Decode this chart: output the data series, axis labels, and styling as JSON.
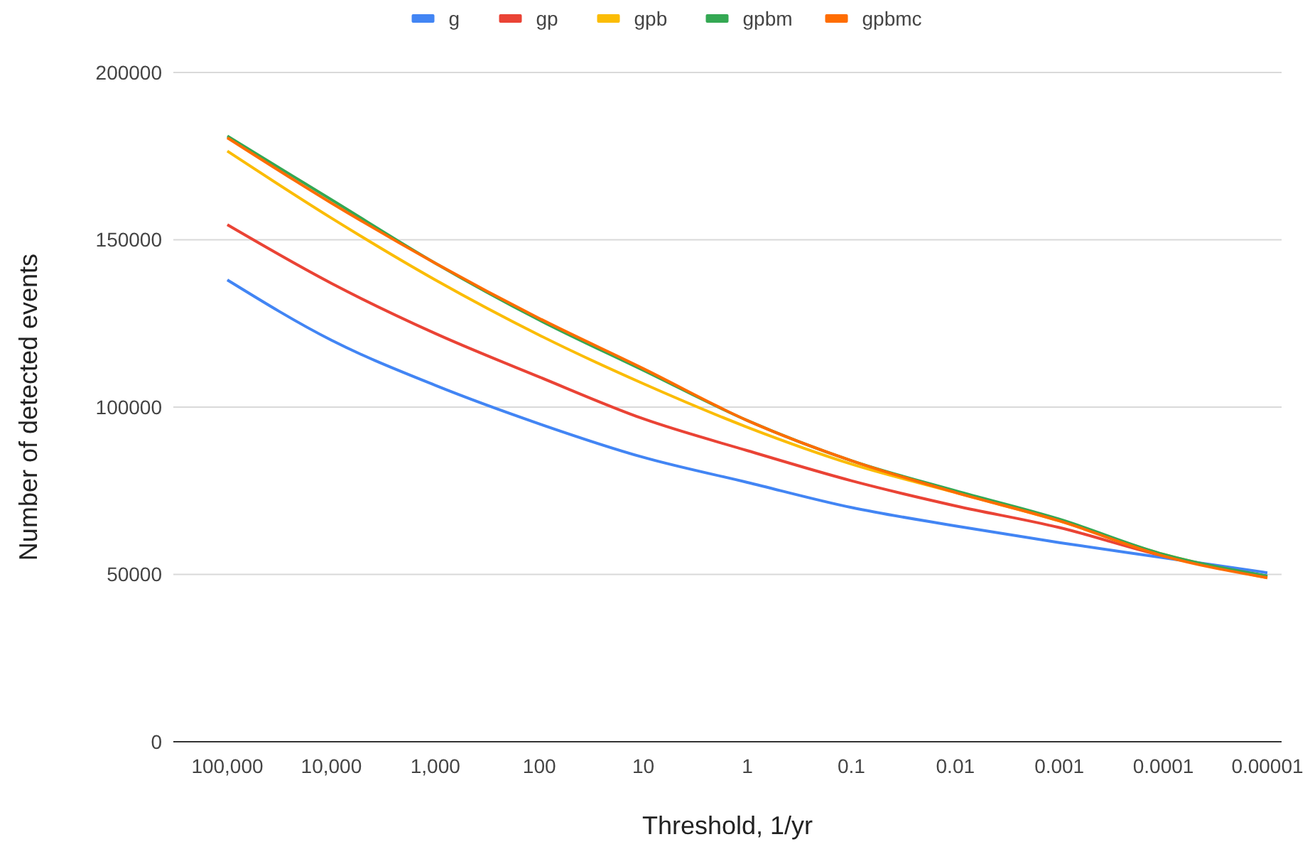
{
  "chart_data": {
    "type": "line",
    "xlabel": "Threshold, 1/yr",
    "ylabel": "Number of detected events",
    "categories": [
      "100,000",
      "10,000",
      "1,000",
      "100",
      "10",
      "1",
      "0.1",
      "0.01",
      "0.001",
      "0.0001",
      "0.00001"
    ],
    "series": [
      {
        "name": "g",
        "color": "#4285f4",
        "values": [
          138000,
          120000,
          106500,
          95000,
          85000,
          77500,
          70000,
          64500,
          59500,
          55000,
          50500
        ]
      },
      {
        "name": "gp",
        "color": "#ea4335",
        "values": [
          154500,
          137000,
          122000,
          109000,
          96500,
          87000,
          78000,
          70500,
          64000,
          55500,
          49500
        ]
      },
      {
        "name": "gpb",
        "color": "#fbbc04",
        "values": [
          176500,
          156500,
          138000,
          121500,
          107000,
          94000,
          83000,
          74500,
          66000,
          56000,
          49000
        ]
      },
      {
        "name": "gpbm",
        "color": "#34a853",
        "values": [
          181000,
          162000,
          143000,
          126000,
          111000,
          96000,
          84000,
          75000,
          66500,
          56000,
          49500
        ]
      },
      {
        "name": "gpbmc",
        "color": "#ff6d01",
        "values": [
          180500,
          161000,
          143000,
          126500,
          111500,
          96000,
          84000,
          74500,
          66000,
          55500,
          49000
        ]
      }
    ],
    "ylim": [
      0,
      200000
    ],
    "yticks": [
      0,
      50000,
      100000,
      150000,
      200000
    ],
    "grid": "y",
    "legend": "top",
    "marker": "none",
    "line_style": "solid"
  }
}
